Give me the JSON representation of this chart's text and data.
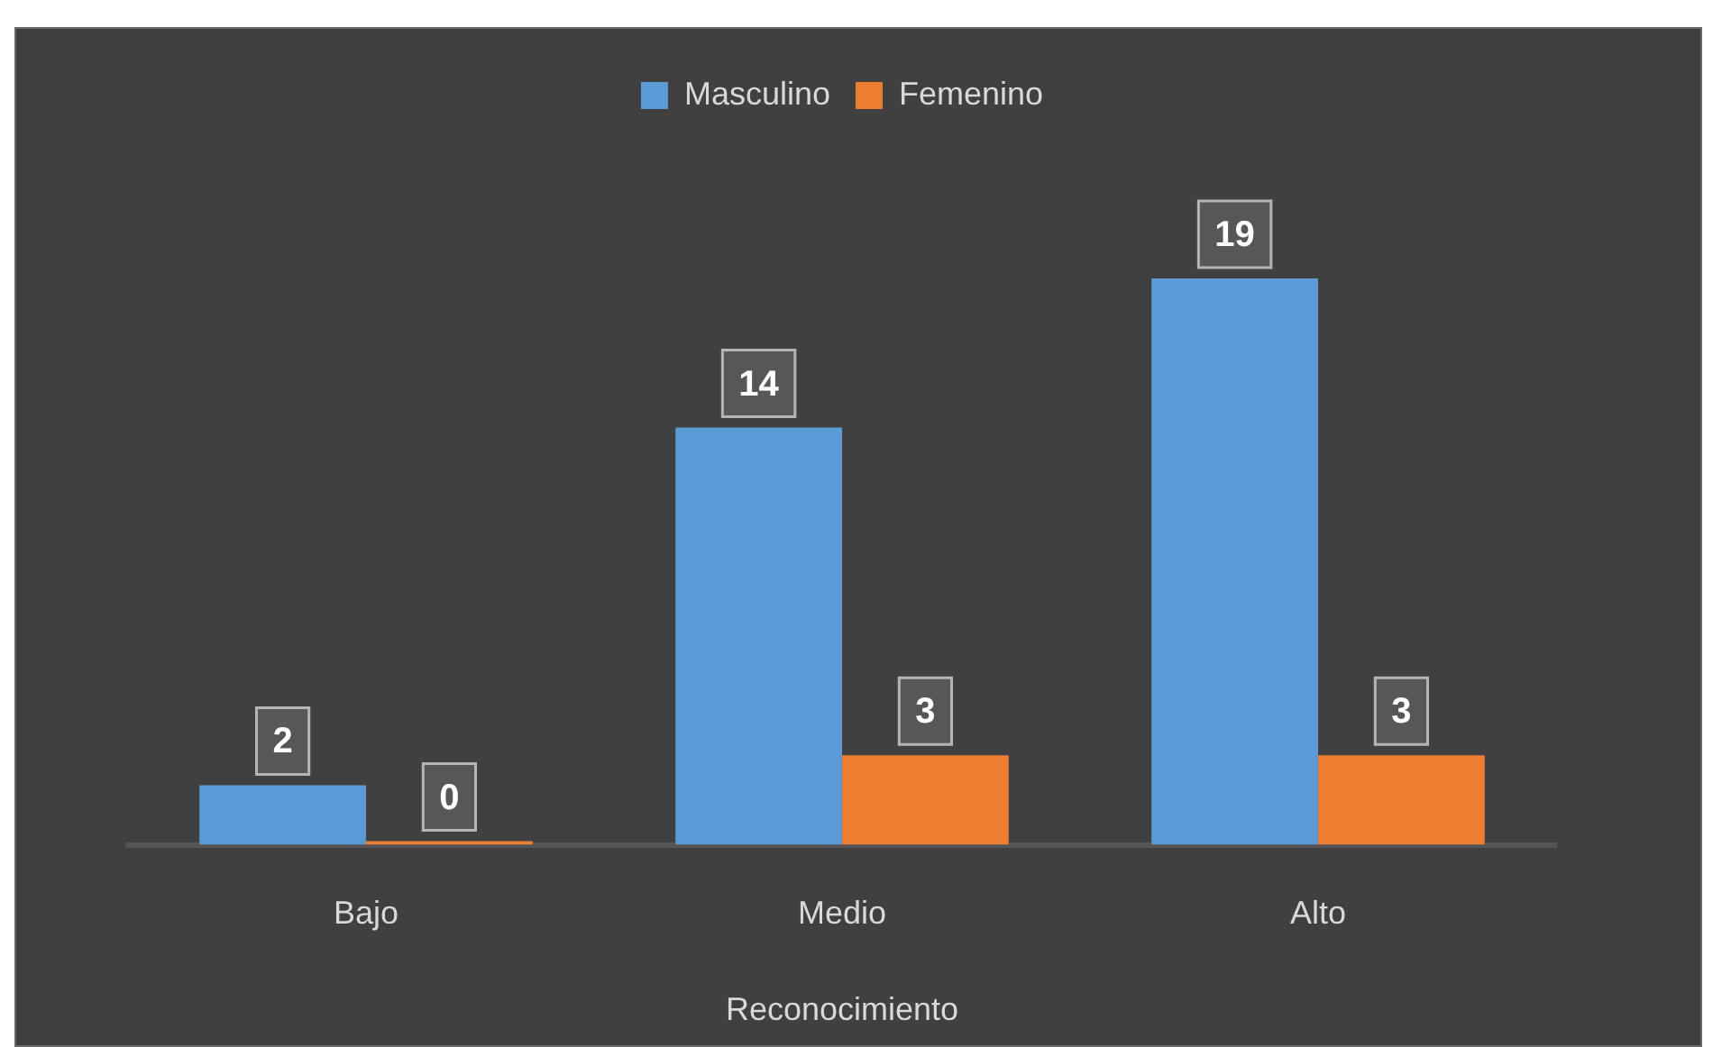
{
  "chart_data": {
    "type": "bar",
    "categories": [
      "Bajo",
      "Medio",
      "Alto"
    ],
    "xlabel": "Reconocimiento",
    "series": [
      {
        "name": "Masculino",
        "color": "#5b9bd5",
        "values": [
          2,
          14,
          19
        ]
      },
      {
        "name": "Femenino",
        "color": "#ed7d31",
        "values": [
          0,
          3,
          3
        ]
      }
    ],
    "legend": "top",
    "data_labels": true,
    "grid": false
  }
}
